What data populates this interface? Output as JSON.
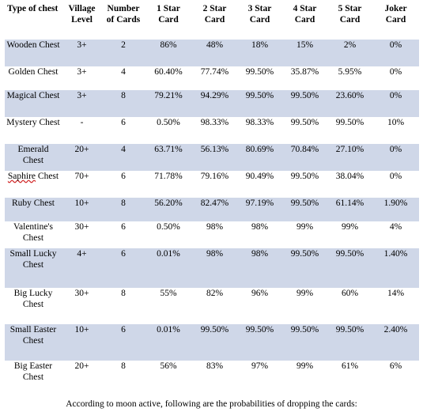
{
  "table": {
    "headers": [
      {
        "key": "type",
        "label": "Type of chest"
      },
      {
        "key": "village",
        "label": "Village Level"
      },
      {
        "key": "cards",
        "label": "Number of Cards"
      },
      {
        "key": "s1",
        "label": "1 Star Card"
      },
      {
        "key": "s2",
        "label": "2 Star Card"
      },
      {
        "key": "s3",
        "label": "3 Star Card"
      },
      {
        "key": "s4",
        "label": "4 Star Card"
      },
      {
        "key": "s5",
        "label": "5 Star Card"
      },
      {
        "key": "joker",
        "label": "Joker Card"
      }
    ],
    "rows": [
      {
        "name": "Wooden Chest",
        "village": "3+",
        "cards": "2",
        "s1": "86%",
        "s2": "48%",
        "s3": "18%",
        "s4": "15%",
        "s5": "2%",
        "joker": "0%"
      },
      {
        "name": "Golden Chest",
        "village": "3+",
        "cards": "4",
        "s1": "60.40%",
        "s2": "77.74%",
        "s3": "99.50%",
        "s4": "35.87%",
        "s5": "5.95%",
        "joker": "0%"
      },
      {
        "name": "Magical Chest",
        "village": "3+",
        "cards": "8",
        "s1": "79.21%",
        "s2": "94.29%",
        "s3": "99.50%",
        "s4": "99.50%",
        "s5": "23.60%",
        "joker": "0%"
      },
      {
        "name": "Mystery Chest",
        "village": "-",
        "cards": "6",
        "s1": "0.50%",
        "s2": "98.33%",
        "s3": "98.33%",
        "s4": "99.50%",
        "s5": "99.50%",
        "joker": "10%"
      },
      {
        "name": "Emerald Chest",
        "village": "20+",
        "cards": "4",
        "s1": "63.71%",
        "s2": "56.13%",
        "s3": "80.69%",
        "s4": "70.84%",
        "s5": "27.10%",
        "joker": "0%"
      },
      {
        "name": "Saphire Chest",
        "village": "70+",
        "cards": "6",
        "s1": "71.78%",
        "s2": "79.16%",
        "s3": "90.49%",
        "s4": "99.50%",
        "s5": "38.04%",
        "joker": "0%"
      },
      {
        "name": "Ruby Chest",
        "village": "10+",
        "cards": "8",
        "s1": "56.20%",
        "s2": "82.47%",
        "s3": "97.19%",
        "s4": "99.50%",
        "s5": "61.14%",
        "joker": "1.90%"
      },
      {
        "name": "Valentine's Chest",
        "village": "30+",
        "cards": "6",
        "s1": "0.50%",
        "s2": "98%",
        "s3": "98%",
        "s4": "99%",
        "s5": "99%",
        "joker": "4%"
      },
      {
        "name": "Small Lucky Chest",
        "village": "4+",
        "cards": "6",
        "s1": "0.01%",
        "s2": "98%",
        "s3": "98%",
        "s4": "99.50%",
        "s5": "99.50%",
        "joker": "1.40%"
      },
      {
        "name": "Big Lucky Chest",
        "village": "30+",
        "cards": "8",
        "s1": "55%",
        "s2": "82%",
        "s3": "96%",
        "s4": "99%",
        "s5": "60%",
        "joker": "14%"
      },
      {
        "name": "Small Easter Chest",
        "village": "10+",
        "cards": "6",
        "s1": "0.01%",
        "s2": "99.50%",
        "s3": "99.50%",
        "s4": "99.50%",
        "s5": "99.50%",
        "joker": "2.40%"
      },
      {
        "name": "Big Easter Chest",
        "village": "20+",
        "cards": "8",
        "s1": "56%",
        "s2": "83%",
        "s3": "97%",
        "s4": "99%",
        "s5": "61%",
        "joker": "6%"
      }
    ]
  },
  "caption": "According to moon active, following are the probabilities of dropping the cards:",
  "colors": {
    "shaded_row": "#cfd7e8",
    "plain_row": "#ffffff",
    "spellcheck_underline": "#d02020"
  }
}
